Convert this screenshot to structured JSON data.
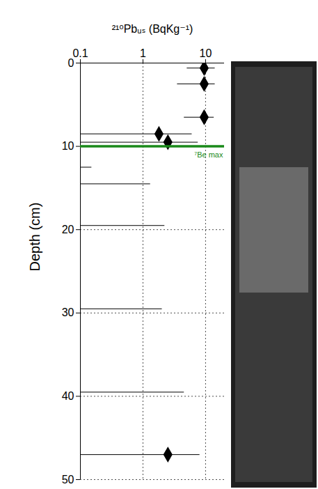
{
  "chart_data": {
    "type": "scatter",
    "title": "²¹⁰Pbᵤₛ (BqKg⁻¹)",
    "ylabel": "Depth (cm)",
    "y": [
      0.6,
      2.5,
      6.5,
      8.5,
      9.5,
      12.5,
      14.5,
      19.5,
      29.5,
      39.5,
      47
    ],
    "x": [
      9.5,
      9.5,
      9.5,
      1.8,
      2.5,
      null,
      null,
      null,
      null,
      null,
      2.5
    ],
    "xerr_low": [
      5,
      3.5,
      4.5,
      0.1,
      0.1,
      0.1,
      0.1,
      0.1,
      0.1,
      0.1,
      0.1
    ],
    "xerr_high": [
      14,
      14,
      13.5,
      6,
      7.5,
      0.15,
      1.3,
      2.2,
      2,
      4.5,
      8
    ],
    "color": "#000000",
    "marker": "diamond",
    "log": "x",
    "xlim": [
      0.1,
      20
    ],
    "xticks": [
      0.1,
      1,
      10
    ],
    "ylim": [
      0,
      50
    ],
    "yticks": [
      0,
      10,
      20,
      30,
      40,
      50
    ],
    "grid": true,
    "annotation": {
      "text": "⁷Be max",
      "y": 10,
      "color": "#1a8a1a"
    }
  }
}
